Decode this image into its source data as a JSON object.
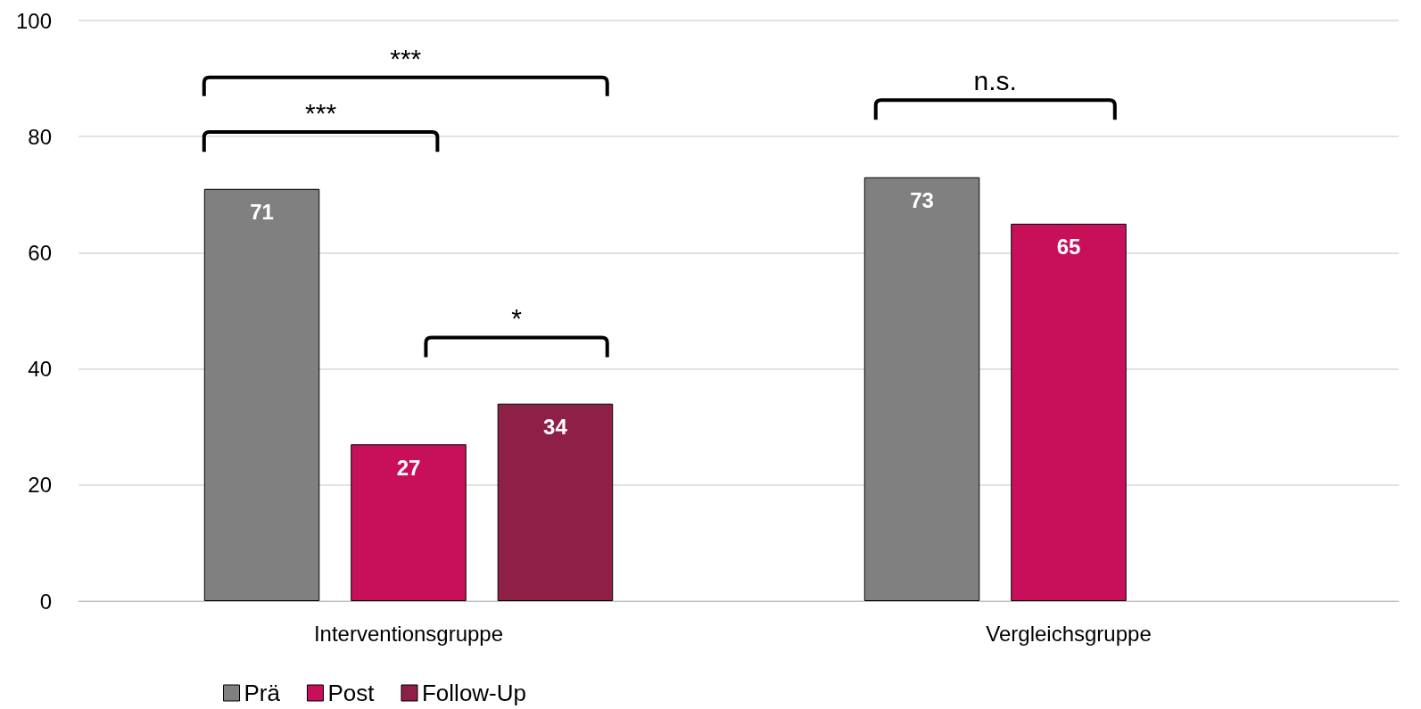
{
  "chart_data": {
    "type": "bar",
    "categories": [
      "Interventionsgruppe",
      "Vergleichsgruppe"
    ],
    "series": [
      {
        "name": "Prä",
        "color": "#808080",
        "values": [
          71,
          73
        ]
      },
      {
        "name": "Post",
        "color": "#c8105a",
        "values": [
          27,
          65
        ]
      },
      {
        "name": "Follow-Up",
        "color": "#8e2048",
        "values": [
          34,
          null
        ]
      }
    ],
    "ylim": [
      0,
      100
    ],
    "yticks": [
      0,
      20,
      40,
      60,
      80,
      100
    ],
    "grid": "y",
    "legend": "bottom left",
    "data_labels": true,
    "annotations": [
      "***",
      "***",
      "*",
      "n.s."
    ]
  }
}
